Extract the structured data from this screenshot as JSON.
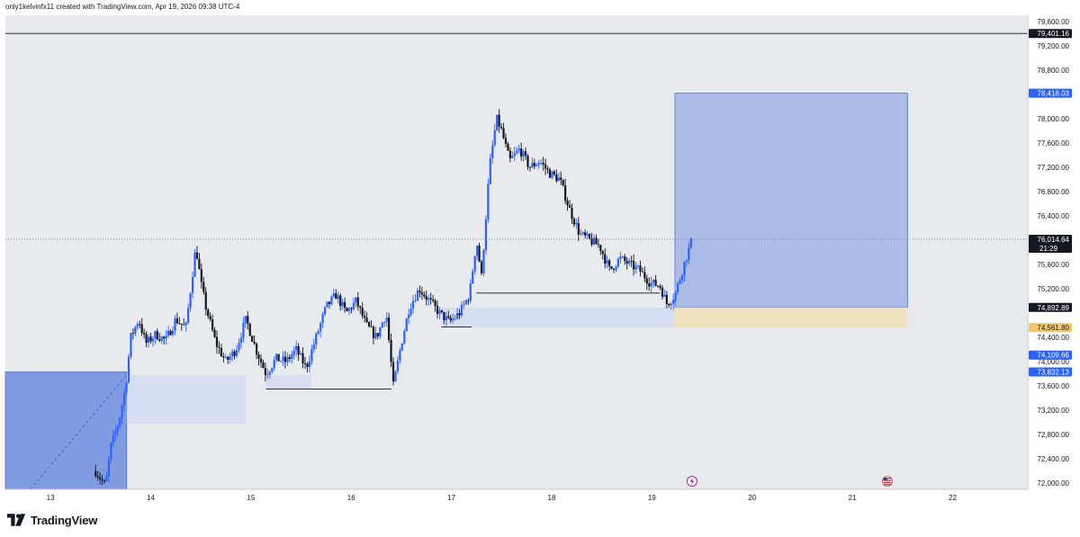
{
  "header": {
    "text": "only1kelvinfx11 created with TradingView.com, Apr 19, 2026 09:38 UTC-4"
  },
  "footer": {
    "brand": "TradingView"
  },
  "colors": {
    "background": "#e9eaee",
    "up": "#2962ff",
    "down": "#131722",
    "target_zone": "#aab9e5",
    "stop_zone": "#f0e0bb",
    "demand_zone": "#7b97e0",
    "fvg_zone": "#d4dcf1"
  },
  "chart_data": {
    "type": "candlestick",
    "symbol_interval": "intraday",
    "x_axis": {
      "labels": [
        "13",
        "14",
        "15",
        "16",
        "17",
        "18",
        "19",
        "20",
        "21",
        "22"
      ]
    },
    "y_axis": {
      "range": [
        71900,
        79700
      ],
      "ticks": [
        72000,
        72400,
        72800,
        73200,
        73600,
        74000,
        74400,
        75200,
        75600,
        76400,
        76800,
        77200,
        77600,
        78000,
        78800,
        79200,
        79600
      ],
      "tick_labels": [
        "72,000.00",
        "72,400.00",
        "72,800.00",
        "73,200.00",
        "73,600.00",
        "74,000.00",
        "74,400.00",
        "75,200.00",
        "75,600.00",
        "76,400.00",
        "76,800.00",
        "77,200.00",
        "77,600.00",
        "78,000.00",
        "78,800.00",
        "79,200.00",
        "79,600.00"
      ]
    },
    "price_labels": [
      {
        "value": 79401.16,
        "text": "79,401.16",
        "style": "dark"
      },
      {
        "value": 78418.03,
        "text": "78,418.03",
        "style": "blue"
      },
      {
        "value": 76014.64,
        "text": "76,014.64",
        "style": "dark",
        "sub": "21:29"
      },
      {
        "value": 74892.89,
        "text": "74,892.89",
        "style": "dark"
      },
      {
        "value": 74561.8,
        "text": "74,561.80",
        "style": "yellow"
      },
      {
        "value": 74109.66,
        "text": "74,109.66",
        "style": "blue"
      },
      {
        "value": 73832.13,
        "text": "73,832.13",
        "style": "blue"
      }
    ],
    "horizontal_lines": [
      {
        "name": "resistance-line",
        "value": 79401.16,
        "style": "solid"
      },
      {
        "name": "current-price-line",
        "value": 76014.64,
        "style": "dotted"
      }
    ],
    "zones": [
      {
        "name": "demand-zone",
        "x_from": 12.55,
        "x_to": 13.76,
        "y_from": 71900,
        "y_to": 73832.13,
        "color": "demand"
      },
      {
        "name": "fvg-zone-1",
        "x_from": 13.76,
        "x_to": 14.95,
        "y_from": 72980,
        "y_to": 73780,
        "color": "fvg"
      },
      {
        "name": "fvg-zone-2",
        "x_from": 15.15,
        "x_to": 15.6,
        "y_from": 73560,
        "y_to": 73780,
        "color": "fvg"
      },
      {
        "name": "fvg-zone-3",
        "x_from": 16.9,
        "x_to": 19.23,
        "y_from": 74561.8,
        "y_to": 74892.89,
        "color": "fvg"
      },
      {
        "name": "target-zone",
        "x_from": 19.23,
        "x_to": 21.55,
        "y_from": 74892.89,
        "y_to": 78418.03,
        "color": "target"
      },
      {
        "name": "stop-zone",
        "x_from": 19.23,
        "x_to": 21.55,
        "y_from": 74561.8,
        "y_to": 74892.89,
        "color": "stop"
      }
    ],
    "segments": [
      {
        "name": "liquidity-line-1",
        "x_from": 15.15,
        "x_to": 16.4,
        "y": 73550
      },
      {
        "name": "liquidity-line-2",
        "x_from": 17.25,
        "x_to": 19.08,
        "y": 75130
      },
      {
        "name": "liquidity-line-3",
        "x_from": 16.9,
        "x_to": 17.2,
        "y": 74570
      }
    ],
    "trendline": {
      "x_from": 12.8,
      "y_from": 71900,
      "x_to": 13.75,
      "y_to": 73760
    },
    "price_path": [
      [
        13.45,
        72200
      ],
      [
        13.55,
        71950
      ],
      [
        13.6,
        72600
      ],
      [
        13.68,
        73000
      ],
      [
        13.75,
        73600
      ],
      [
        13.8,
        74400
      ],
      [
        13.88,
        74700
      ],
      [
        13.95,
        74300
      ],
      [
        14.05,
        74450
      ],
      [
        14.15,
        74350
      ],
      [
        14.25,
        74700
      ],
      [
        14.35,
        74550
      ],
      [
        14.45,
        75900
      ],
      [
        14.5,
        75300
      ],
      [
        14.55,
        74900
      ],
      [
        14.65,
        74300
      ],
      [
        14.75,
        74000
      ],
      [
        14.85,
        74200
      ],
      [
        14.95,
        74700
      ],
      [
        15.05,
        74200
      ],
      [
        15.15,
        73800
      ],
      [
        15.25,
        74050
      ],
      [
        15.35,
        74000
      ],
      [
        15.45,
        74200
      ],
      [
        15.55,
        73900
      ],
      [
        15.65,
        74400
      ],
      [
        15.75,
        74900
      ],
      [
        15.85,
        75100
      ],
      [
        15.95,
        74800
      ],
      [
        16.05,
        75000
      ],
      [
        16.15,
        74600
      ],
      [
        16.25,
        74400
      ],
      [
        16.35,
        74800
      ],
      [
        16.42,
        73600
      ],
      [
        16.5,
        74300
      ],
      [
        16.58,
        74900
      ],
      [
        16.68,
        75200
      ],
      [
        16.78,
        75000
      ],
      [
        16.88,
        74800
      ],
      [
        16.98,
        74650
      ],
      [
        17.08,
        74800
      ],
      [
        17.18,
        75100
      ],
      [
        17.25,
        76000
      ],
      [
        17.3,
        75400
      ],
      [
        17.38,
        77200
      ],
      [
        17.45,
        78000
      ],
      [
        17.5,
        77800
      ],
      [
        17.58,
        77300
      ],
      [
        17.68,
        77500
      ],
      [
        17.78,
        77200
      ],
      [
        17.88,
        77300
      ],
      [
        17.98,
        77100
      ],
      [
        18.08,
        77000
      ],
      [
        18.18,
        76500
      ],
      [
        18.28,
        76100
      ],
      [
        18.38,
        76000
      ],
      [
        18.48,
        75900
      ],
      [
        18.58,
        75500
      ],
      [
        18.68,
        75700
      ],
      [
        18.78,
        75600
      ],
      [
        18.88,
        75500
      ],
      [
        18.98,
        75300
      ],
      [
        19.08,
        75250
      ],
      [
        19.15,
        74950
      ],
      [
        19.23,
        75100
      ],
      [
        19.32,
        75600
      ],
      [
        19.4,
        76014.64
      ]
    ],
    "events": [
      {
        "name": "earnings-event-icon",
        "x": 19.4,
        "glyph": "⚡"
      },
      {
        "name": "us-flag-icon",
        "x": 21.35,
        "glyph": "🇺🇸"
      }
    ]
  }
}
